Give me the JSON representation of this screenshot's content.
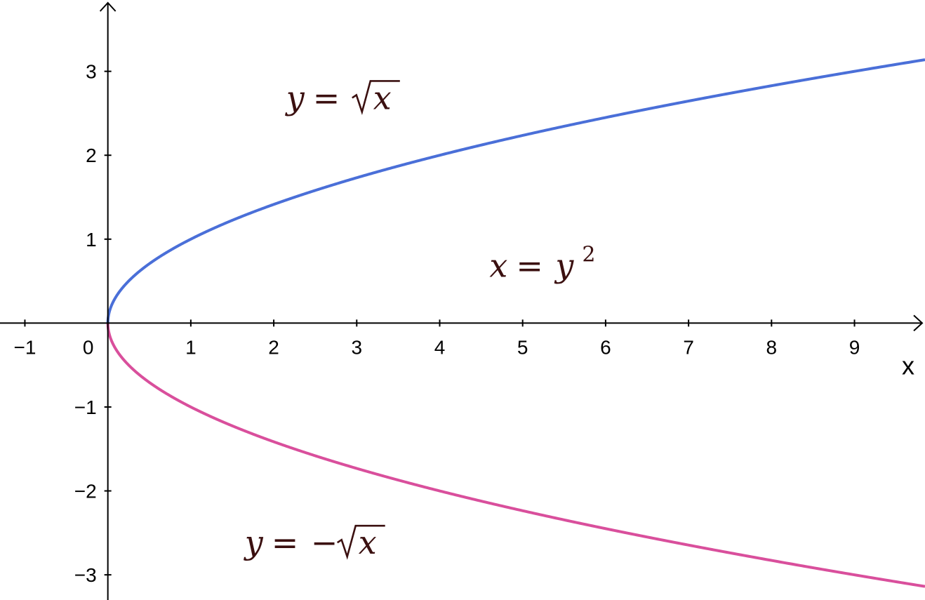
{
  "chart_data": {
    "type": "line",
    "title": "",
    "xlabel": "x",
    "ylabel": "",
    "xlim": [
      -1.3,
      9.85
    ],
    "ylim": [
      -3.3,
      3.85
    ],
    "grid": false,
    "x_ticks": [
      "−1",
      "1",
      "2",
      "3",
      "4",
      "5",
      "6",
      "7",
      "8",
      "9"
    ],
    "x_tick_values": [
      -1,
      1,
      2,
      3,
      4,
      5,
      6,
      7,
      8,
      9
    ],
    "origin_label": "0",
    "y_ticks": [
      "3",
      "2",
      "1",
      "−1",
      "−2",
      "−3"
    ],
    "y_tick_values": [
      3,
      2,
      1,
      -1,
      -2,
      -3
    ],
    "series": [
      {
        "color": "#4a6fd8",
        "x": [
          0,
          0.01,
          0.05,
          0.1,
          0.25,
          0.5,
          1,
          1.5,
          2,
          3,
          4,
          5,
          6,
          7,
          8,
          9,
          9.85
        ],
        "y": [
          0,
          0.1,
          0.224,
          0.316,
          0.5,
          0.707,
          1,
          1.225,
          1.414,
          1.732,
          2,
          2.236,
          2.449,
          2.646,
          2.828,
          3,
          3.138
        ]
      },
      {
        "color": "#d94f9c",
        "x": [
          0,
          0.01,
          0.05,
          0.1,
          0.25,
          0.5,
          1,
          1.5,
          2,
          3,
          4,
          5,
          6,
          7,
          8,
          9,
          9.85
        ],
        "y": [
          0,
          -0.1,
          -0.224,
          -0.316,
          -0.5,
          -0.707,
          -1,
          -1.225,
          -1.414,
          -1.732,
          -2,
          -2.236,
          -2.449,
          -2.646,
          -2.828,
          -3,
          -3.138
        ]
      }
    ],
    "annotations": {
      "upper": {
        "lhs": "y",
        "eq": "=",
        "rad": "x",
        "x": 2.15,
        "y": 2.55
      },
      "middle": {
        "lhs": "x",
        "eq": "=",
        "base": "y",
        "exp": "2",
        "x": 4.6,
        "y": 0.55
      },
      "lower": {
        "lhs": "y",
        "eq": "=",
        "minus": "−",
        "rad": "x",
        "x": 1.65,
        "y": -2.75
      }
    }
  }
}
